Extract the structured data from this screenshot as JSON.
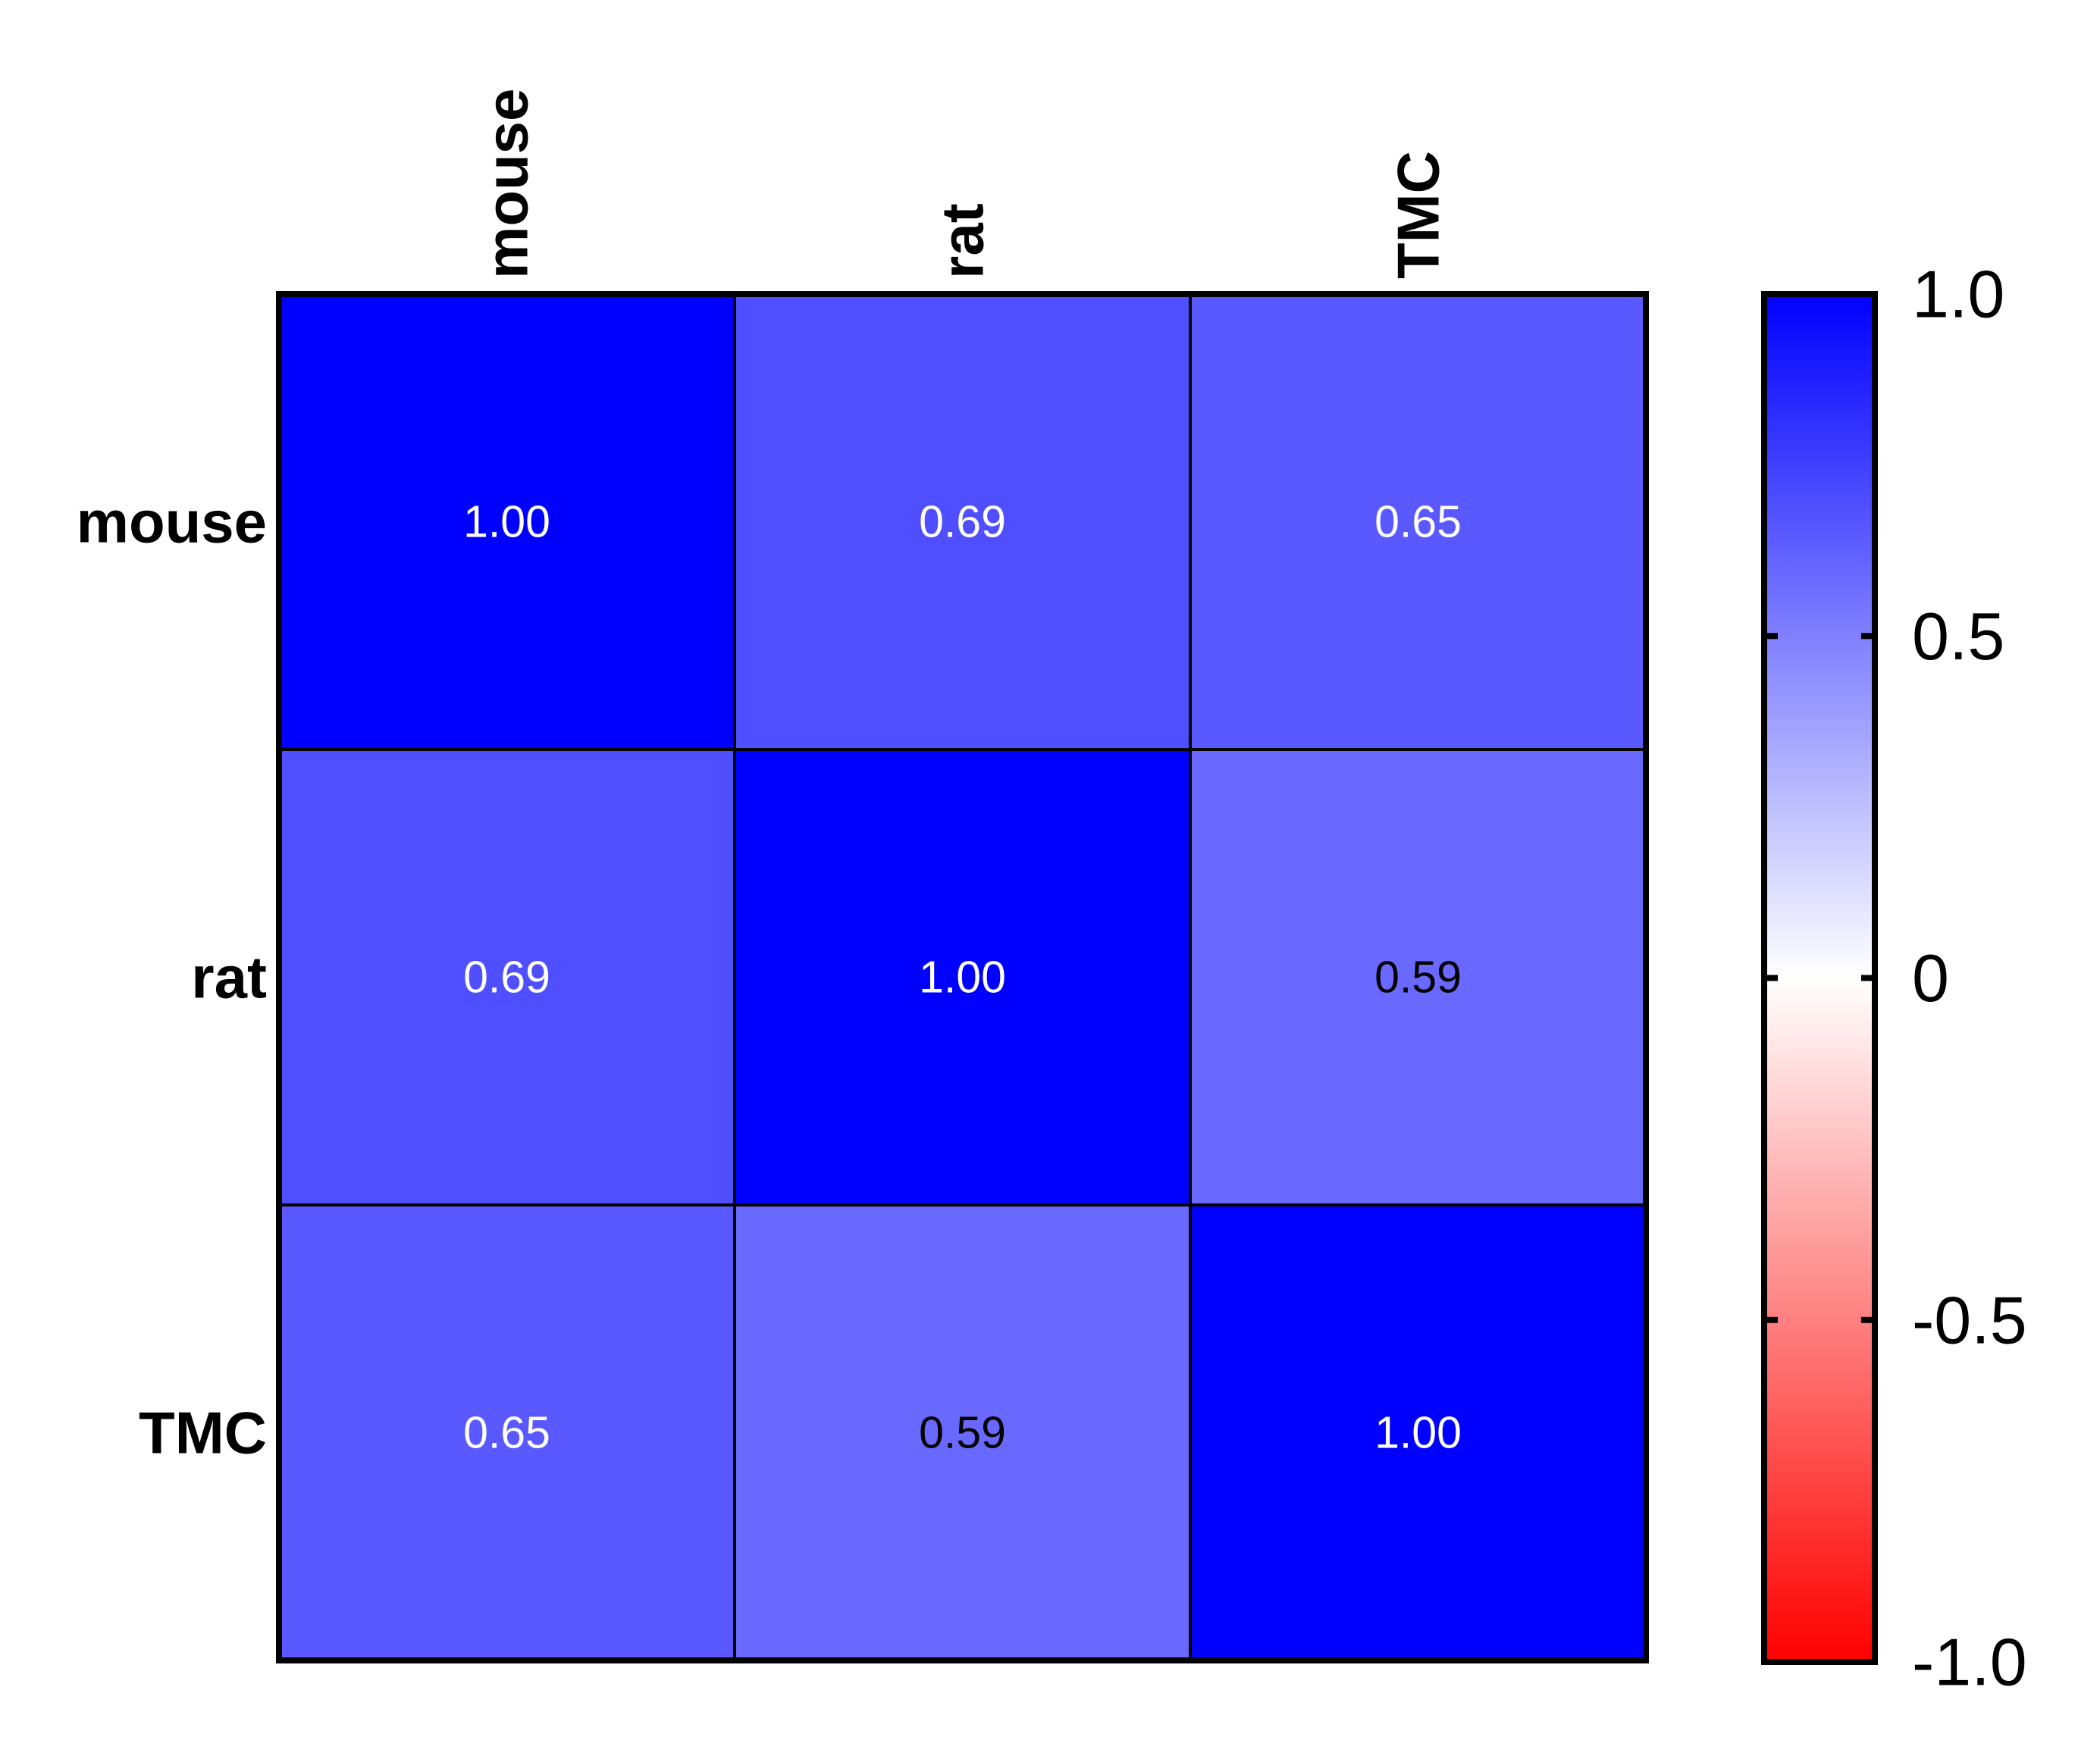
{
  "chart_data": {
    "type": "heatmap",
    "title": "",
    "row_labels": [
      "mouse",
      "rat",
      "TMC"
    ],
    "col_labels": [
      "mouse",
      "rat",
      "TMC"
    ],
    "values": [
      [
        1.0,
        0.69,
        0.65
      ],
      [
        0.69,
        1.0,
        0.59
      ],
      [
        0.65,
        0.59,
        1.0
      ]
    ],
    "value_format_decimals": 2,
    "colorbar": {
      "min": -1.0,
      "max": 1.0,
      "ticks": [
        1.0,
        0.5,
        0,
        -0.5,
        -1.0
      ],
      "tick_labels": [
        "1.0",
        "0.5",
        "0",
        "-0.5",
        "-1.0"
      ],
      "colors": {
        "negative": "#ff0000",
        "zero": "#ffffff",
        "positive": "#0000ff"
      }
    },
    "colors": {
      "grid_line": "#000000",
      "axis_text": "#000000",
      "label_light": "#ffffff",
      "label_dark": "#000000"
    }
  }
}
